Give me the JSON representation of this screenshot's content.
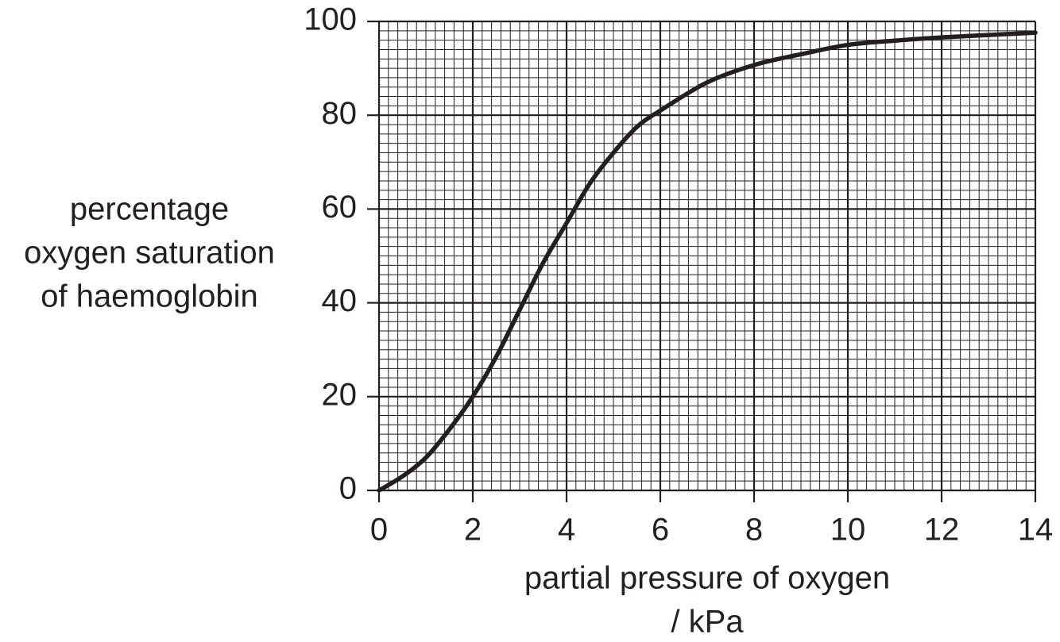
{
  "chart_data": {
    "type": "line",
    "y_label": [
      "percentage",
      "oxygen saturation",
      "of haemoglobin"
    ],
    "x_label": [
      "partial pressure of oxygen",
      "/ kPa"
    ],
    "x": [
      0,
      0.5,
      1,
      1.5,
      2,
      2.5,
      3,
      3.5,
      4,
      4.5,
      5,
      5.5,
      6,
      7,
      8,
      9,
      10,
      11,
      12,
      13,
      14
    ],
    "series": [
      {
        "color": "#231f20",
        "values": [
          0,
          3,
          7,
          13,
          20,
          28.5,
          38.5,
          48.5,
          57,
          65.5,
          72,
          77.5,
          81,
          87,
          90.7,
          93,
          95,
          95.9,
          96.6,
          97.1,
          97.6
        ]
      }
    ],
    "xlim": [
      0,
      14
    ],
    "xticks": [
      0,
      2,
      4,
      6,
      8,
      10,
      12,
      14
    ],
    "ylim": [
      0,
      100
    ],
    "yticks": [
      0,
      20,
      40,
      60,
      80,
      100
    ],
    "grid": true
  }
}
